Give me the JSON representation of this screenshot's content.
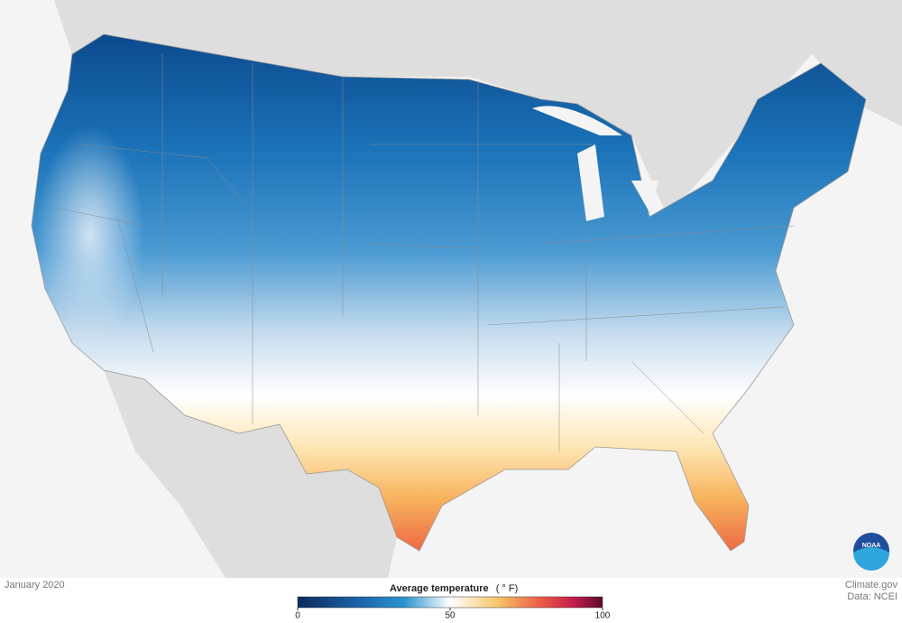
{
  "date_label": "January 2020",
  "legend": {
    "title": "Average temperature",
    "unit": "( ° F)",
    "range": [
      0,
      100
    ],
    "ticks": [
      0,
      50,
      100
    ]
  },
  "credits": {
    "source": "Climate.gov",
    "data": "Data: NCEI"
  },
  "logo": "NOAA"
}
